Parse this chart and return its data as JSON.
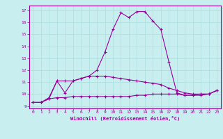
{
  "xlabel": "Windchill (Refroidissement éolien,°C)",
  "ylabel": "",
  "bg_color": "#c8eef0",
  "line_color": "#990099",
  "grid_color": "#aadddd",
  "xlim": [
    -0.5,
    23.5
  ],
  "ylim": [
    8.8,
    17.4
  ],
  "xticks": [
    0,
    1,
    2,
    3,
    4,
    5,
    6,
    7,
    8,
    9,
    10,
    11,
    12,
    13,
    14,
    15,
    16,
    17,
    18,
    19,
    20,
    21,
    22,
    23
  ],
  "yticks": [
    9,
    10,
    11,
    12,
    13,
    14,
    15,
    16,
    17
  ],
  "line1_x": [
    0,
    1,
    2,
    3,
    4,
    5,
    6,
    7,
    8,
    9,
    10,
    11,
    12,
    13,
    14,
    15,
    16,
    17,
    18,
    19,
    20,
    21,
    22,
    23
  ],
  "line1_y": [
    9.3,
    9.3,
    9.7,
    11.1,
    10.1,
    11.1,
    11.3,
    11.5,
    12.0,
    13.5,
    15.4,
    16.8,
    16.4,
    16.9,
    16.9,
    16.1,
    15.4,
    12.7,
    10.1,
    9.9,
    9.9,
    10.0,
    10.0,
    10.3
  ],
  "line2_x": [
    0,
    1,
    2,
    3,
    4,
    5,
    6,
    7,
    8,
    9,
    10,
    11,
    12,
    13,
    14,
    15,
    16,
    17,
    18,
    19,
    20,
    21,
    22,
    23
  ],
  "line2_y": [
    9.3,
    9.3,
    9.6,
    11.1,
    11.1,
    11.1,
    11.3,
    11.5,
    11.5,
    11.5,
    11.4,
    11.3,
    11.2,
    11.1,
    11.0,
    10.9,
    10.8,
    10.5,
    10.3,
    10.1,
    10.0,
    10.0,
    10.0,
    10.3
  ],
  "line3_x": [
    0,
    1,
    2,
    3,
    4,
    5,
    6,
    7,
    8,
    9,
    10,
    11,
    12,
    13,
    14,
    15,
    16,
    17,
    18,
    19,
    20,
    21,
    22,
    23
  ],
  "line3_y": [
    9.3,
    9.3,
    9.6,
    9.7,
    9.7,
    9.8,
    9.8,
    9.8,
    9.8,
    9.8,
    9.8,
    9.8,
    9.8,
    9.9,
    9.9,
    10.0,
    10.0,
    10.0,
    10.0,
    9.9,
    9.9,
    9.9,
    10.0,
    10.3
  ]
}
